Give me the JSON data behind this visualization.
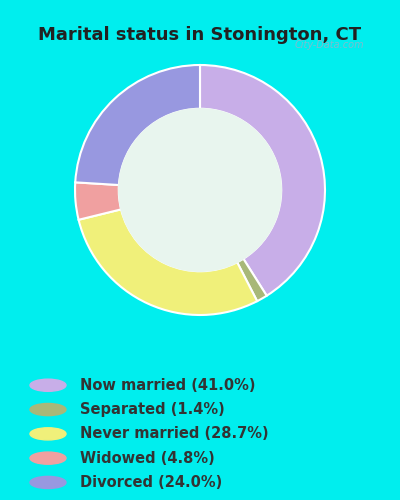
{
  "title": "Marital status in Stonington, CT",
  "title_fontsize": 13,
  "title_color": "#222222",
  "background_outer": "#00EEEE",
  "background_chart": "#e8f5ee",
  "slices": [
    {
      "label": "Now married (41.0%)",
      "value": 41.0,
      "color": "#c8aee8"
    },
    {
      "label": "Separated (1.4%)",
      "value": 1.4,
      "color": "#a8b878"
    },
    {
      "label": "Never married (28.7%)",
      "value": 28.7,
      "color": "#f0f07a"
    },
    {
      "label": "Widowed (4.8%)",
      "value": 4.8,
      "color": "#f0a0a0"
    },
    {
      "label": "Divorced (24.0%)",
      "value": 24.0,
      "color": "#9898e0"
    }
  ],
  "donut_width": 0.35,
  "legend_fontsize": 10.5,
  "legend_text_color": "#333333",
  "watermark": "City-Data.com"
}
